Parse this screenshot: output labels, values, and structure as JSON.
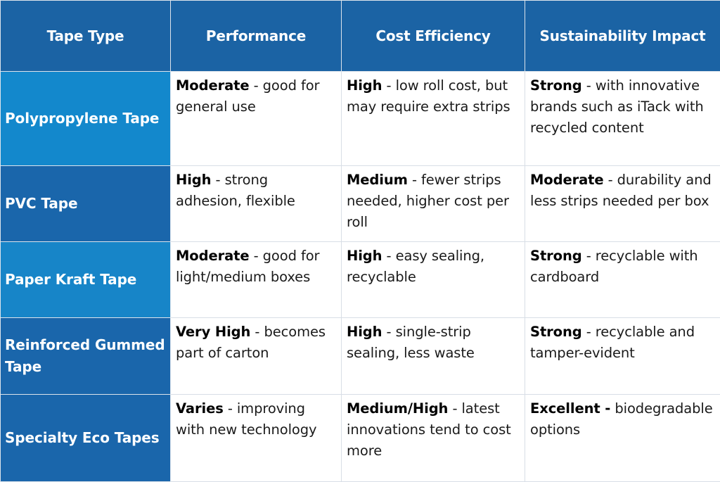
{
  "headers": [
    "Tape Type",
    "Performance",
    "Cost Efficiency",
    "Sustainability Impact"
  ],
  "rows": [
    {
      "type": "Polypropylene Tape",
      "performance": {
        "rating": "Moderate",
        "note": " - good for general use"
      },
      "cost": {
        "rating": "High",
        "note": " - low roll cost, but may require extra strips"
      },
      "sustainability": {
        "rating": "Strong",
        "note": " - with innovative brands such as iTack with recycled content"
      }
    },
    {
      "type": "PVC Tape",
      "performance": {
        "rating": "High",
        "note": " - strong adhesion, flexible"
      },
      "cost": {
        "rating": "Medium",
        "note": " - fewer strips needed, higher cost per roll"
      },
      "sustainability": {
        "rating": "Moderate",
        "note": " - durability and less strips needed per box"
      }
    },
    {
      "type": "Paper Kraft Tape",
      "performance": {
        "rating": "Moderate",
        "note": " - good for light/medium boxes"
      },
      "cost": {
        "rating": "High",
        "note": " - easy sealing, recyclable"
      },
      "sustainability": {
        "rating": "Strong",
        "note": " - recyclable with cardboard"
      }
    },
    {
      "type": "Reinforced Gummed Tape",
      "performance": {
        "rating": "Very High",
        "note": " - becomes part of carton"
      },
      "cost": {
        "rating": "High",
        "note": " - single-strip sealing, less waste"
      },
      "sustainability": {
        "rating": "Strong",
        "note": " - recyclable and tamper-evident"
      }
    },
    {
      "type": "Specialty Eco Tapes",
      "performance": {
        "rating": "Varies",
        "note": " - improving with new technology"
      },
      "cost": {
        "rating": "Medium/High",
        "note": " - latest innovations tend to cost more"
      },
      "sustainability": {
        "rating": "Excellent -",
        "note": " biodegradable options"
      }
    }
  ]
}
